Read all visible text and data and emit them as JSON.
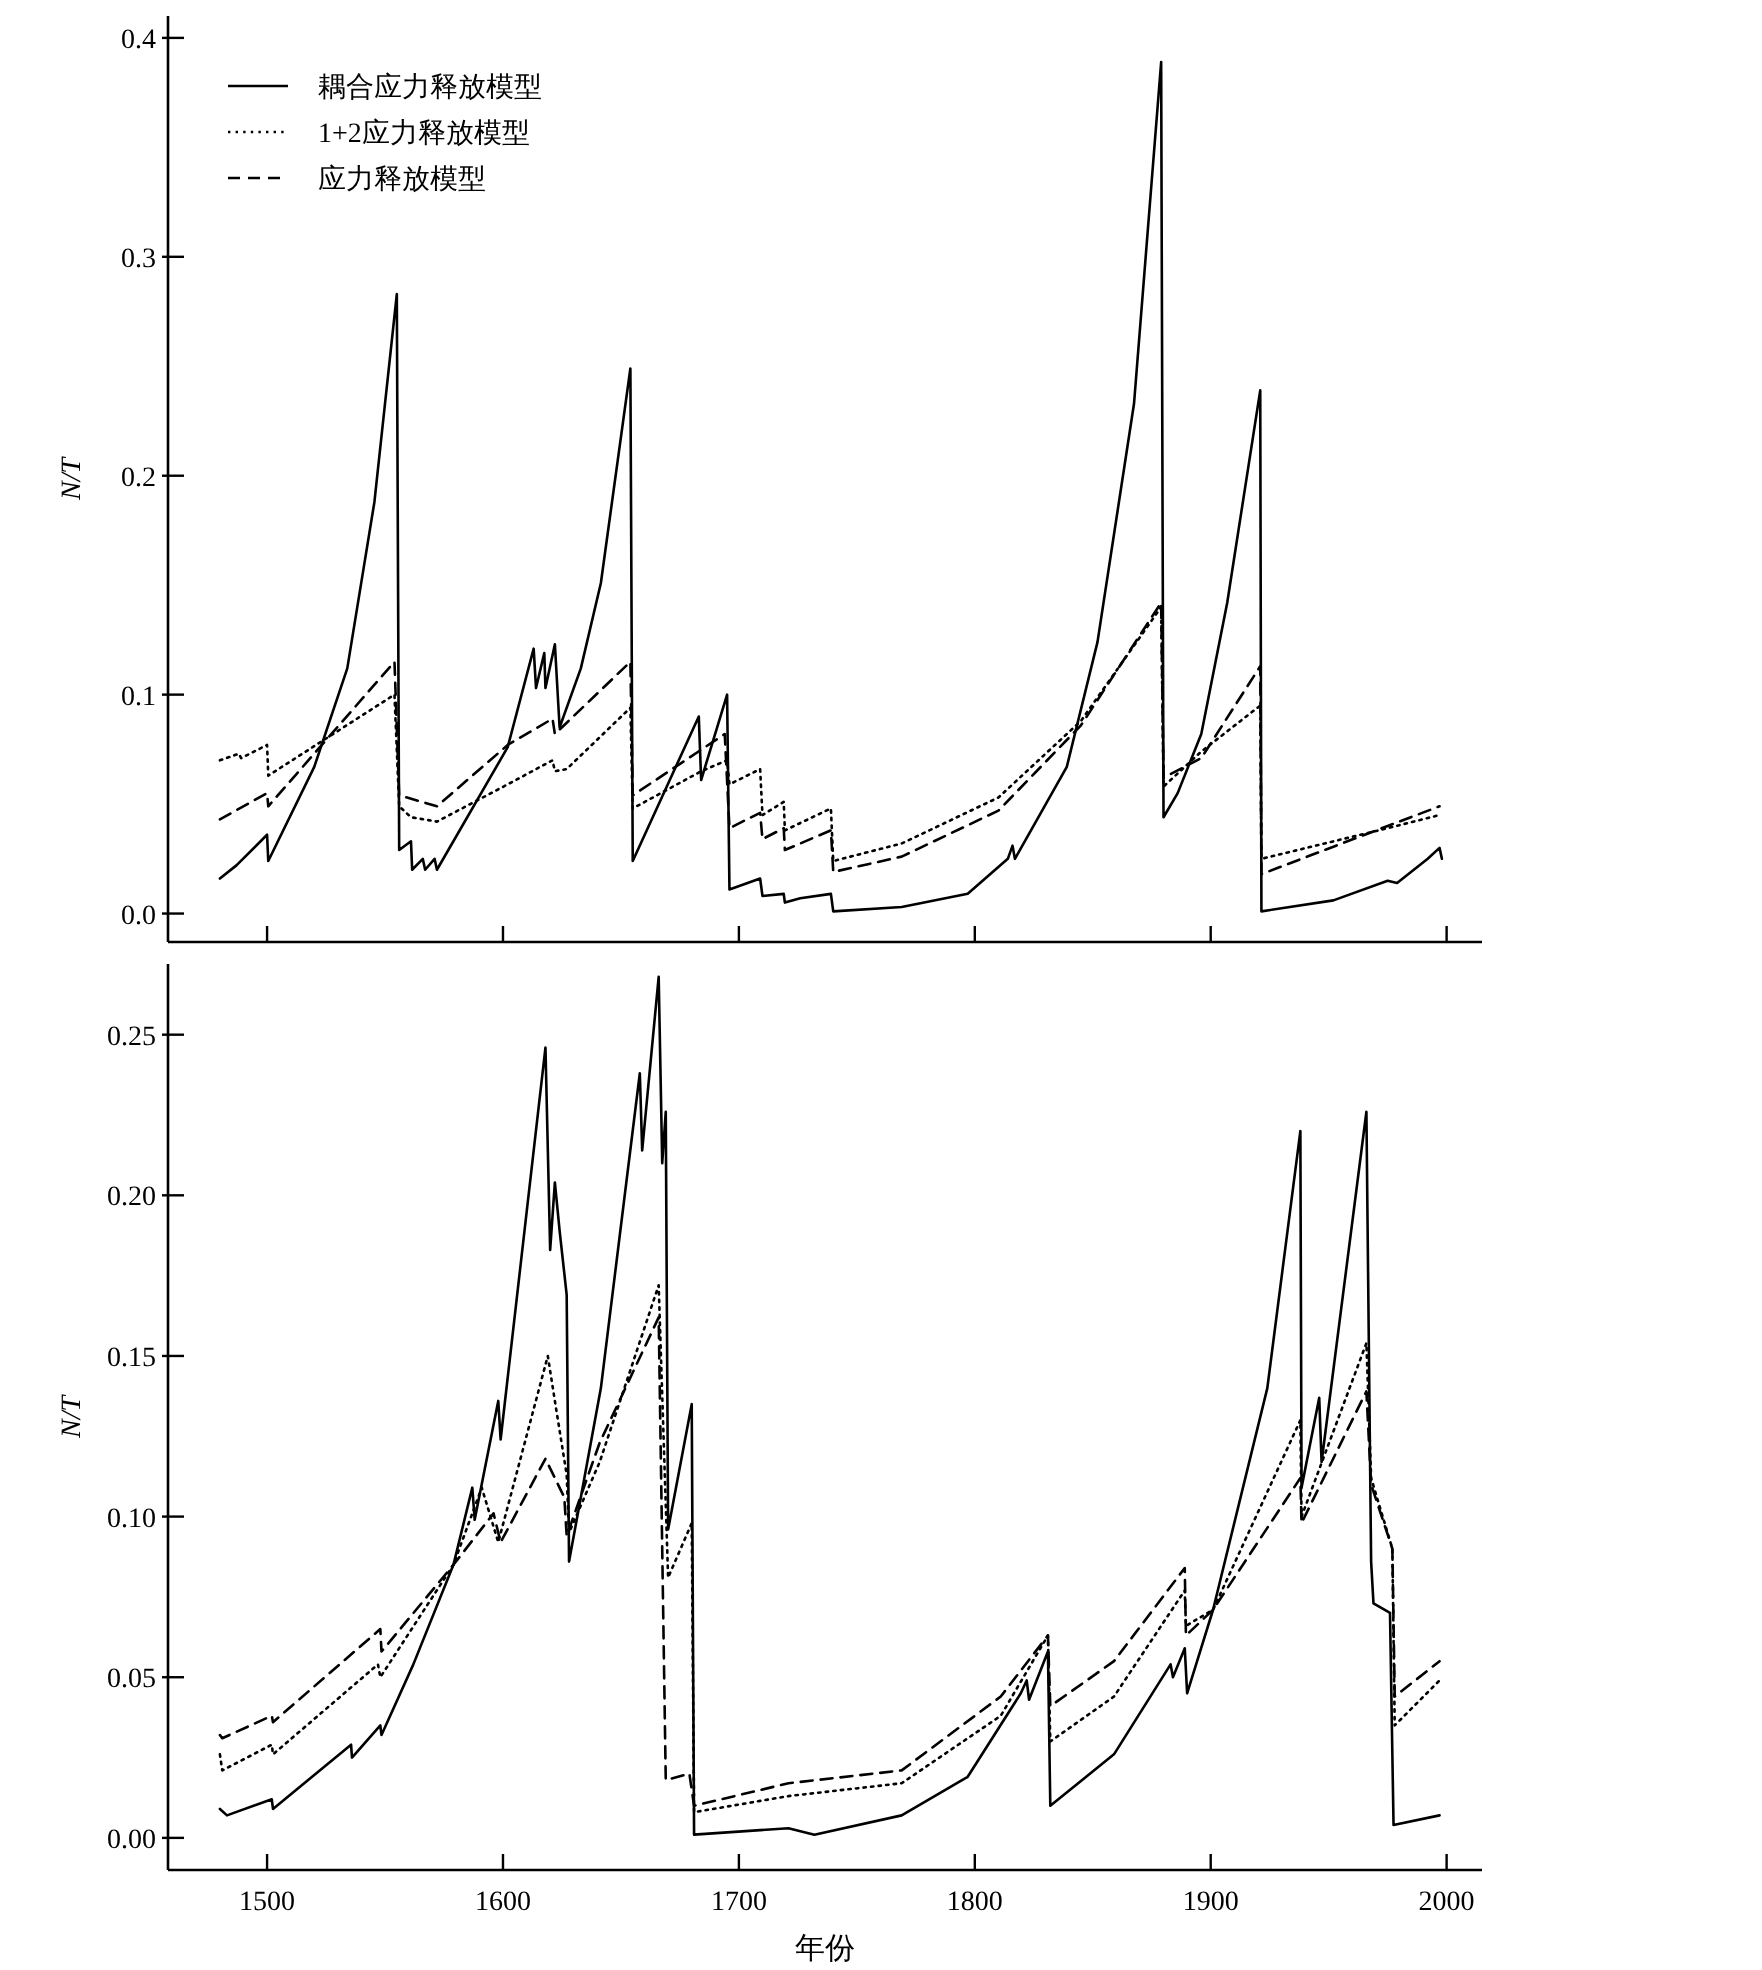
{
  "chart_data": [
    {
      "type": "line",
      "ylabel": "N/T",
      "xlim": [
        1458,
        2015
      ],
      "xticks": [
        1500,
        1600,
        1700,
        1800,
        1900,
        2000
      ],
      "ylim": [
        -0.013,
        0.41
      ],
      "yticks": [
        {
          "value": 0,
          "label": "0.0"
        },
        {
          "value": 0.1,
          "label": "0.1"
        },
        {
          "value": 0.2,
          "label": "0.2"
        },
        {
          "value": 0.3,
          "label": "0.3"
        },
        {
          "value": 0.4,
          "label": "0.4"
        }
      ],
      "tick_labels": "y",
      "legend": "top left",
      "series": [
        {
          "name": "耦合应力释放模型",
          "color": "#000000",
          "line_style": "solid",
          "x": [
            1480,
            1487,
            1500,
            1500.5,
            1520,
            1534,
            1545.5,
            1555,
            1556,
            1561,
            1561.5,
            1566,
            1567,
            1571,
            1572,
            1602,
            1613,
            1614,
            1617.5,
            1618,
            1622,
            1624,
            1633,
            1641.5,
            1654,
            1655,
            1683,
            1684,
            1695,
            1696,
            1709,
            1710,
            1719,
            1719.5,
            1726,
            1739,
            1740,
            1769,
            1797,
            1814,
            1816,
            1817,
            1839,
            1852,
            1867.5,
            1879,
            1880,
            1886,
            1896,
            1907,
            1921,
            1921.5,
            1952,
            1975,
            1979,
            1992,
            1997,
            1998
          ],
          "values": [
            0.016,
            0.022,
            0.036,
            0.024,
            0.067,
            0.112,
            0.188,
            0.283,
            0.029,
            0.033,
            0.02,
            0.025,
            0.02,
            0.025,
            0.02,
            0.076,
            0.121,
            0.103,
            0.119,
            0.103,
            0.123,
            0.085,
            0.112,
            0.151,
            0.249,
            0.024,
            0.09,
            0.061,
            0.1,
            0.011,
            0.016,
            0.008,
            0.009,
            0.005,
            0.007,
            0.009,
            0.001,
            0.003,
            0.009,
            0.025,
            0.031,
            0.025,
            0.067,
            0.124,
            0.233,
            0.389,
            0.044,
            0.055,
            0.082,
            0.142,
            0.239,
            0.001,
            0.006,
            0.015,
            0.014,
            0.025,
            0.03,
            0.025
          ]
        },
        {
          "name": "1+2应力释放模型",
          "color": "#000000",
          "line_style": "dotted",
          "x": [
            1480,
            1488,
            1489,
            1500,
            1500.5,
            1554,
            1556,
            1561,
            1572,
            1602,
            1621,
            1622,
            1627,
            1654,
            1655,
            1684,
            1695,
            1696,
            1709,
            1710,
            1719,
            1719.5,
            1739,
            1740,
            1769,
            1810,
            1845,
            1879,
            1880,
            1896,
            1921,
            1921.5,
            1975,
            1997
          ],
          "values": [
            0.07,
            0.073,
            0.071,
            0.077,
            0.063,
            0.1,
            0.049,
            0.044,
            0.042,
            0.059,
            0.07,
            0.065,
            0.066,
            0.094,
            0.048,
            0.065,
            0.07,
            0.059,
            0.066,
            0.045,
            0.051,
            0.038,
            0.048,
            0.024,
            0.032,
            0.053,
            0.088,
            0.14,
            0.058,
            0.074,
            0.095,
            0.025,
            0.039,
            0.045
          ]
        },
        {
          "name": "应力释放模型",
          "color": "#000000",
          "line_style": "dashed",
          "x": [
            1480,
            1500,
            1500.5,
            1554,
            1556,
            1572,
            1602,
            1621,
            1622,
            1654,
            1655,
            1694,
            1696,
            1709,
            1710,
            1719,
            1719.5,
            1739,
            1740,
            1769,
            1810,
            1845,
            1879,
            1880,
            1896,
            1921,
            1921.5,
            1975,
            1997
          ],
          "values": [
            0.043,
            0.055,
            0.049,
            0.115,
            0.054,
            0.049,
            0.077,
            0.089,
            0.082,
            0.115,
            0.054,
            0.082,
            0.039,
            0.046,
            0.034,
            0.039,
            0.029,
            0.038,
            0.019,
            0.026,
            0.047,
            0.086,
            0.142,
            0.062,
            0.071,
            0.113,
            0.018,
            0.04,
            0.049
          ]
        }
      ]
    },
    {
      "type": "line",
      "ylabel": "N/T",
      "xlabel": "年份",
      "xlim": [
        1458,
        2015
      ],
      "xticks": [
        1500,
        1600,
        1700,
        1800,
        1900,
        2000
      ],
      "ylim": [
        -0.01,
        0.272
      ],
      "yticks": [
        {
          "value": 0,
          "label": "0.00"
        },
        {
          "value": 0.05,
          "label": "0.05"
        },
        {
          "value": 0.1,
          "label": "0.10"
        },
        {
          "value": 0.15,
          "label": "0.15"
        },
        {
          "value": 0.2,
          "label": "0.20"
        },
        {
          "value": 0.25,
          "label": "0.25"
        }
      ],
      "series": [
        {
          "color": "#000000",
          "line_style": "solid",
          "x": [
            1480,
            1483,
            1502,
            1502.5,
            1535.6,
            1536,
            1548,
            1548.5,
            1562,
            1579,
            1587,
            1588,
            1598,
            1599,
            1618,
            1620,
            1622,
            1624,
            1627,
            1628,
            1641.5,
            1658,
            1659,
            1666,
            1667.5,
            1669,
            1670,
            1680,
            1681,
            1721,
            1732,
            1769,
            1797,
            1819.5,
            1822,
            1823,
            1831,
            1832,
            1859,
            1883,
            1884,
            1889,
            1890,
            1901,
            1924,
            1938,
            1938.5,
            1946,
            1947,
            1966,
            1968,
            1969,
            1976,
            1977.5,
            1997
          ],
          "values": [
            0.009,
            0.007,
            0.012,
            0.009,
            0.029,
            0.025,
            0.035,
            0.032,
            0.054,
            0.085,
            0.109,
            0.099,
            0.136,
            0.124,
            0.246,
            0.183,
            0.204,
            0.189,
            0.169,
            0.086,
            0.14,
            0.238,
            0.214,
            0.268,
            0.21,
            0.226,
            0.096,
            0.135,
            0.001,
            0.003,
            0.001,
            0.007,
            0.019,
            0.045,
            0.049,
            0.043,
            0.058,
            0.01,
            0.026,
            0.054,
            0.05,
            0.059,
            0.045,
            0.071,
            0.14,
            0.22,
            0.109,
            0.137,
            0.117,
            0.226,
            0.086,
            0.073,
            0.07,
            0.004,
            0.007
          ]
        },
        {
          "color": "#000000",
          "line_style": "dotted",
          "x": [
            1480,
            1481,
            1502,
            1502.5,
            1547,
            1548,
            1579,
            1591,
            1598,
            1619,
            1622,
            1627,
            1628,
            1641,
            1666,
            1670,
            1680,
            1681,
            1721,
            1769,
            1811,
            1831,
            1832,
            1859,
            1889,
            1889.5,
            1901,
            1938,
            1938.5,
            1966,
            1968,
            1977,
            1978,
            1997
          ],
          "values": [
            0.026,
            0.021,
            0.029,
            0.026,
            0.054,
            0.05,
            0.085,
            0.109,
            0.092,
            0.15,
            0.136,
            0.113,
            0.095,
            0.117,
            0.172,
            0.081,
            0.098,
            0.008,
            0.013,
            0.017,
            0.038,
            0.063,
            0.03,
            0.044,
            0.077,
            0.066,
            0.071,
            0.13,
            0.1,
            0.154,
            0.112,
            0.09,
            0.035,
            0.049
          ]
        },
        {
          "color": "#000000",
          "line_style": "dashed",
          "x": [
            1480,
            1481,
            1502,
            1502.5,
            1548,
            1548.5,
            1579,
            1596,
            1599,
            1618,
            1626,
            1627,
            1641,
            1666,
            1669,
            1679,
            1681,
            1721,
            1769,
            1811,
            1831,
            1832,
            1859,
            1889,
            1889.5,
            1901,
            1938,
            1938.5,
            1966,
            1968,
            1977,
            1978,
            1997
          ],
          "values": [
            0.032,
            0.031,
            0.038,
            0.036,
            0.065,
            0.058,
            0.085,
            0.101,
            0.092,
            0.118,
            0.106,
            0.094,
            0.123,
            0.162,
            0.018,
            0.02,
            0.01,
            0.017,
            0.021,
            0.044,
            0.063,
            0.041,
            0.055,
            0.084,
            0.063,
            0.071,
            0.112,
            0.098,
            0.139,
            0.11,
            0.09,
            0.044,
            0.055
          ]
        }
      ]
    }
  ]
}
